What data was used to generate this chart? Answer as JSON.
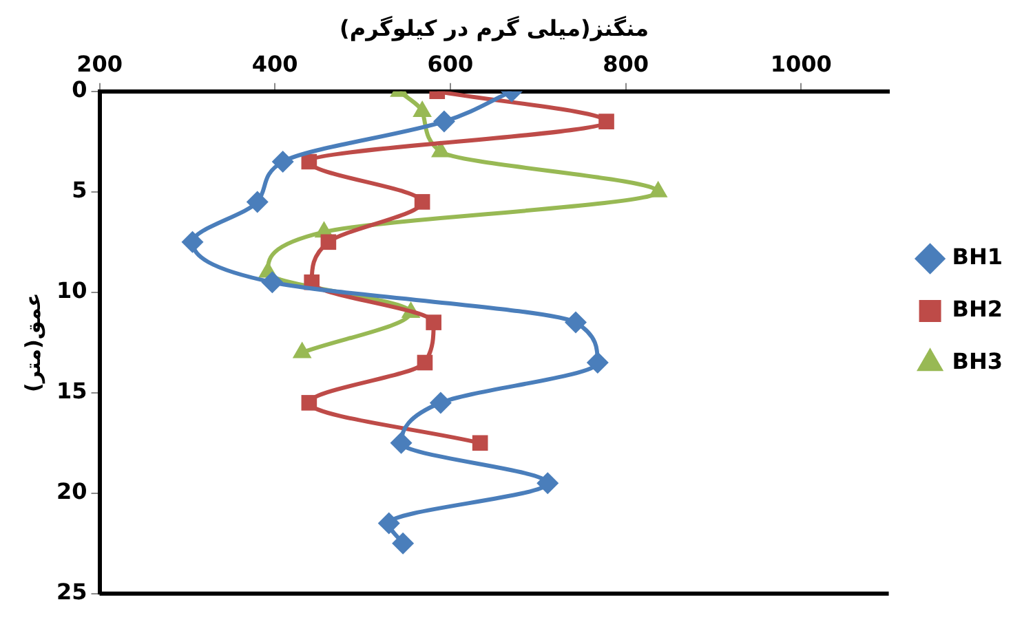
{
  "chart_data": {
    "type": "line",
    "xlabel": "منگنز(میلی گرم در کیلوگرم)",
    "ylabel": "عمق(متر)",
    "xlim": [
      200,
      1100
    ],
    "xticks": [
      200,
      400,
      600,
      800,
      1000
    ],
    "ylim": [
      25,
      0
    ],
    "yticks": [
      0,
      5,
      10,
      15,
      20,
      25
    ],
    "grid": false,
    "legend": "right",
    "line_style": "solid",
    "series": [
      {
        "name": "BH1",
        "color": "#4a7ebb",
        "marker": "diamond",
        "x": [
          670,
          593,
          409,
          380,
          306,
          397,
          743,
          768,
          589,
          544,
          711,
          530,
          546
        ],
        "values": [
          0,
          1.5,
          3.5,
          5.5,
          7.5,
          9.5,
          11.5,
          13.5,
          15.5,
          17.5,
          19.5,
          21.5,
          22.5
        ]
      },
      {
        "name": "BH2",
        "color": "#be4b48",
        "marker": "square",
        "x": [
          585,
          778,
          439,
          568,
          461,
          442,
          581,
          571,
          439,
          634
        ],
        "values": [
          0,
          1.5,
          3.5,
          5.5,
          7.5,
          9.5,
          11.5,
          13.5,
          15.5,
          17.5
        ]
      },
      {
        "name": "BH3",
        "color": "#98b954",
        "marker": "triangle",
        "x": [
          542,
          568,
          589,
          837,
          456,
          392,
          555,
          431
        ],
        "values": [
          0,
          1,
          3,
          5,
          7,
          9,
          11,
          13
        ]
      }
    ]
  }
}
